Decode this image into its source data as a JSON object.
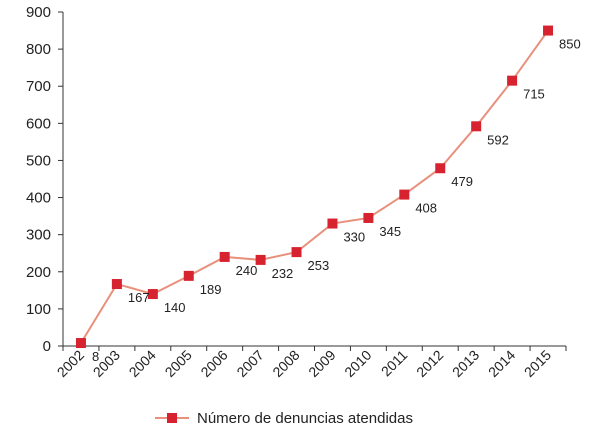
{
  "chart_data": {
    "type": "line",
    "title": "",
    "xlabel": "",
    "ylabel": "",
    "x": [
      "2002",
      "2003",
      "2004",
      "2005",
      "2006",
      "2007",
      "2008",
      "2009",
      "2010",
      "2011",
      "2012",
      "2013",
      "2014",
      "2015"
    ],
    "series": [
      {
        "name": "Número de denuncias atendidas",
        "values": [
          8,
          167,
          140,
          189,
          240,
          232,
          253,
          330,
          345,
          408,
          479,
          592,
          715,
          850
        ],
        "line_color": "#e8907c",
        "marker_color": "#d7232f",
        "marker": "square"
      }
    ],
    "ylim": [
      0,
      900
    ],
    "yticks": [
      "0",
      "100",
      "200",
      "300",
      "400",
      "500",
      "600",
      "700",
      "800",
      "900"
    ],
    "grid": false,
    "legend": "bottom"
  }
}
